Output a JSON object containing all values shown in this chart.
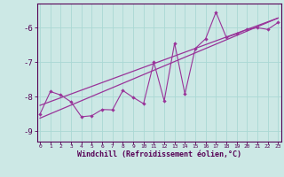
{
  "xlabel": "Windchill (Refroidissement éolien,°C)",
  "bg_color": "#cce8e5",
  "grid_color": "#aad8d4",
  "line_color": "#993399",
  "xlim": [
    -0.3,
    23.3
  ],
  "ylim": [
    -9.3,
    -5.3
  ],
  "yticks": [
    -9,
    -8,
    -7,
    -6
  ],
  "xticks": [
    0,
    1,
    2,
    3,
    4,
    5,
    6,
    7,
    8,
    9,
    10,
    11,
    12,
    13,
    14,
    15,
    16,
    17,
    18,
    19,
    20,
    21,
    22,
    23
  ],
  "scatter_x": [
    0,
    1,
    2,
    3,
    4,
    5,
    6,
    7,
    8,
    9,
    10,
    11,
    12,
    13,
    14,
    15,
    16,
    17,
    18,
    19,
    20,
    21,
    22,
    23
  ],
  "scatter_y": [
    -8.5,
    -7.85,
    -7.95,
    -8.15,
    -8.58,
    -8.55,
    -8.37,
    -8.38,
    -7.82,
    -8.02,
    -8.2,
    -7.0,
    -8.12,
    -6.45,
    -7.92,
    -6.6,
    -6.32,
    -5.55,
    -6.28,
    -6.18,
    -6.05,
    -6.0,
    -6.05,
    -5.85
  ],
  "trend1_x": [
    0,
    23
  ],
  "trend1_y": [
    -8.62,
    -5.72
  ],
  "trend2_x": [
    0,
    23
  ],
  "trend2_y": [
    -8.25,
    -5.72
  ]
}
